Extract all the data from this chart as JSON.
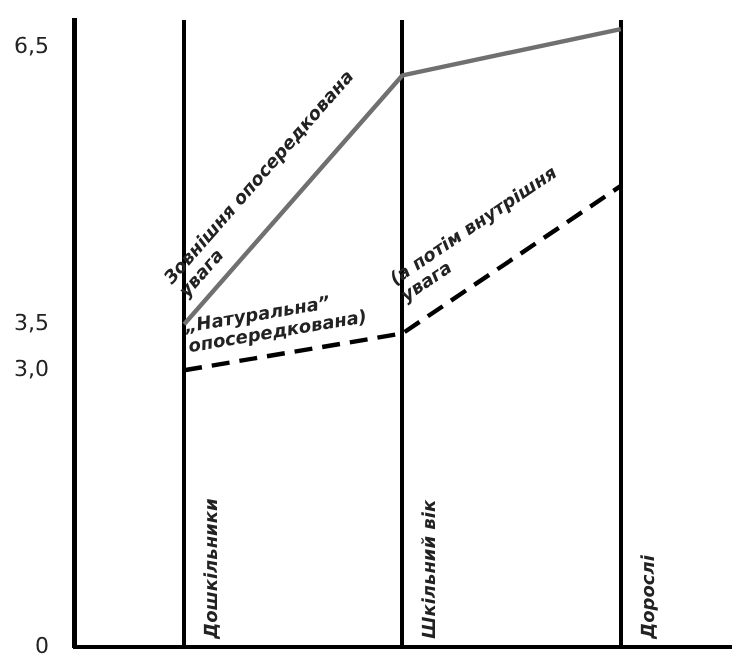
{
  "chart_data": {
    "type": "line",
    "categories": [
      "Дошкільники",
      "Шкільний вік",
      "Дорослі"
    ],
    "series": [
      {
        "color": "#707070",
        "values": [
          3.5,
          6.2,
          6.7
        ],
        "line_style": "solid"
      },
      {
        "color": "#000000",
        "values": [
          3.0,
          3.4,
          5.0
        ],
        "line_style": "dashed"
      }
    ],
    "ylim": [
      0,
      6.8
    ],
    "yticks": [
      0,
      {
        "value": 3.0,
        "label": "3,0"
      },
      {
        "value": 3.5,
        "label": "3,5"
      },
      {
        "value": 6.5,
        "label": "6,5"
      }
    ],
    "grid": "x",
    "marker": "none",
    "legend": false,
    "annotations": [
      {
        "text": "Зовнішня опосередкована увага",
        "x": "Дошкільники",
        "y": 3.75
      },
      {
        "text": "„Натуральна” опосередкована)",
        "x": "Дошкільники",
        "y": 3.15
      },
      {
        "text": "(а потім внутрішня увага",
        "x": "Шкільний вік",
        "y": 3.7
      }
    ]
  }
}
